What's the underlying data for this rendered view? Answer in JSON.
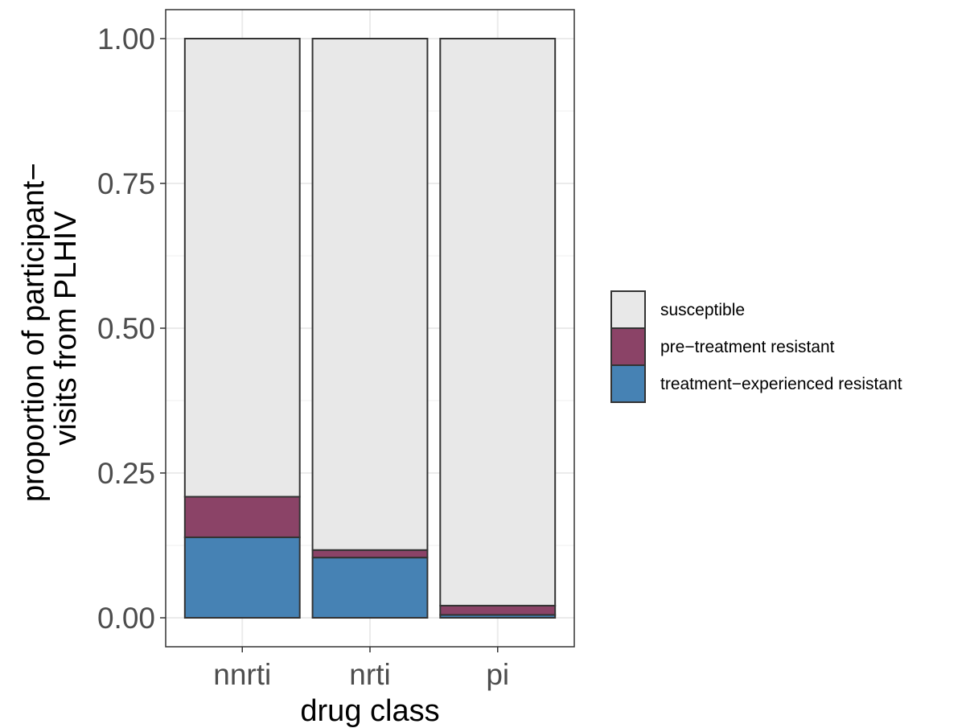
{
  "chart_data": {
    "type": "bar",
    "stacked": true,
    "categories": [
      "nnrti",
      "nrti",
      "pi"
    ],
    "series": [
      {
        "name": "treatment−experienced resistant",
        "color": "#4682B4",
        "values": [
          0.139,
          0.104,
          0.005
        ]
      },
      {
        "name": "pre−treatment resistant",
        "color": "#8B4367",
        "values": [
          0.07,
          0.013,
          0.016
        ]
      },
      {
        "name": "susceptible",
        "color": "#E8E8E8",
        "values": [
          0.791,
          0.883,
          0.979
        ]
      }
    ],
    "xlabel": "drug class",
    "ylabel_lines": [
      "proportion of participant−",
      "visits from PLHIV"
    ],
    "ylim": [
      -0.05,
      1.05
    ],
    "yticks": [
      0.0,
      0.25,
      0.5,
      0.75,
      1.0
    ],
    "ytick_labels": [
      "0.00",
      "0.25",
      "0.50",
      "0.75",
      "1.00"
    ],
    "legend": {
      "placement": "right",
      "order": [
        "susceptible",
        "pre−treatment resistant",
        "treatment−experienced resistant"
      ]
    },
    "grid": true
  }
}
